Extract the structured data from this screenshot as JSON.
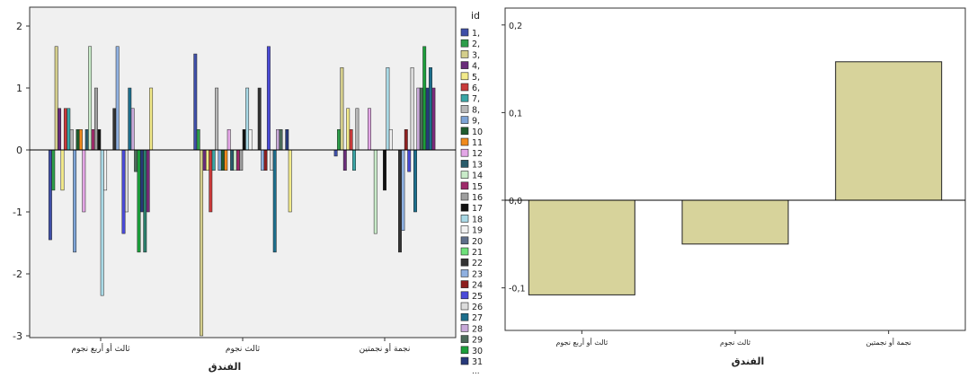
{
  "chart_data": [
    {
      "type": "bar",
      "xlabel": "الفندق",
      "ylabel": "",
      "ylim": [
        -3,
        2.2
      ],
      "yticks": [
        "-3",
        "-2",
        "-1",
        "0",
        "1",
        "2"
      ],
      "categories": [
        "ثالث أو أربع نجوم",
        "ثالث نجوم",
        "نجمة أو نجمتين"
      ],
      "legend_title": "id",
      "legend_labels": [
        "1,",
        "2,",
        "3,",
        "4,",
        "5,",
        "6,",
        "7,",
        "8,",
        "9,",
        "10",
        "11",
        "12",
        "13",
        "14",
        "15",
        "16",
        "17",
        "18",
        "19",
        "20",
        "21",
        "22",
        "23",
        "24",
        "25",
        "26",
        "27",
        "28",
        "29",
        "30",
        "31"
      ],
      "legend_more": "...",
      "series": [
        {
          "color": "#3F4FA8",
          "values": [
            -1.45,
            1.55,
            -0.1
          ]
        },
        {
          "color": "#2E9E4A",
          "values": [
            -0.65,
            0.33,
            0.33
          ]
        },
        {
          "color": "#D4CE8C",
          "values": [
            1.67,
            -3.0,
            1.33
          ]
        },
        {
          "color": "#6A2C7A",
          "values": [
            0.67,
            -0.33,
            -0.33
          ]
        },
        {
          "color": "#F2EA8A",
          "values": [
            -0.65,
            -0.33,
            0.67
          ]
        },
        {
          "color": "#C93A3A",
          "values": [
            0.67,
            -1.0,
            0.33
          ]
        },
        {
          "color": "#3AA6A6",
          "values": [
            0.67,
            -0.33,
            -0.33
          ]
        },
        {
          "color": "#B8B8B8",
          "values": [
            0.33,
            1.0,
            0.67
          ]
        },
        {
          "color": "#7EA4D6",
          "values": [
            -1.65,
            -0.33,
            0.0
          ]
        },
        {
          "color": "#1F5C2E",
          "values": [
            0.33,
            -0.33,
            0.0
          ]
        },
        {
          "color": "#F08A1C",
          "values": [
            0.33,
            -0.33,
            0.0
          ]
        },
        {
          "color": "#E3A6E6",
          "values": [
            -1.0,
            0.33,
            0.67
          ]
        },
        {
          "color": "#2A5C6B",
          "values": [
            0.33,
            -0.33,
            0.0
          ]
        },
        {
          "color": "#C9EBC9",
          "values": [
            1.67,
            -0.33,
            -1.35
          ]
        },
        {
          "color": "#9E2A6A",
          "values": [
            0.33,
            -0.33,
            0.0
          ]
        },
        {
          "color": "#9E9E9E",
          "values": [
            1.0,
            -0.33,
            0.0
          ]
        },
        {
          "color": "#111111",
          "values": [
            0.33,
            0.33,
            -0.65
          ]
        },
        {
          "color": "#A9D9E6",
          "values": [
            -2.35,
            1.0,
            1.33
          ]
        },
        {
          "color": "#F2F2F2",
          "values": [
            -0.65,
            0.33,
            0.33
          ]
        },
        {
          "color": "#5E6E8A",
          "values": [
            0.0,
            0.0,
            0.0
          ]
        },
        {
          "color": "#6EE07A",
          "values": [
            0.0,
            0.0,
            0.0
          ]
        },
        {
          "color": "#333333",
          "values": [
            0.67,
            1.0,
            -1.65
          ]
        },
        {
          "color": "#8FB0E0",
          "values": [
            1.67,
            -0.33,
            -1.3
          ]
        },
        {
          "color": "#8E1F1F",
          "values": [
            0.0,
            -0.33,
            0.33
          ]
        },
        {
          "color": "#4A4AD9",
          "values": [
            -1.35,
            1.67,
            -0.35
          ]
        },
        {
          "color": "#DCDCDC",
          "values": [
            -1.0,
            -0.33,
            1.33
          ]
        },
        {
          "color": "#1C6E8C",
          "values": [
            1.0,
            -1.65,
            -1.0
          ]
        },
        {
          "color": "#C9A9D9",
          "values": [
            0.67,
            0.33,
            1.0
          ]
        },
        {
          "color": "#4C6B5A",
          "values": [
            -0.35,
            0.33,
            1.0
          ]
        },
        {
          "color": "#1B9E3A",
          "values": [
            -1.65,
            0.0,
            1.67
          ]
        },
        {
          "color": "#27397A",
          "values": [
            -1.0,
            0.33,
            1.0
          ]
        }
      ],
      "extra_bars": [
        {
          "category": 0,
          "color": "#2A7E6B",
          "value": -1.65
        },
        {
          "category": 0,
          "color": "#7A2A7A",
          "value": -1.0
        },
        {
          "category": 0,
          "color": "#F2EA8A",
          "value": 1.0
        },
        {
          "category": 1,
          "color": "#F2EA8A",
          "value": -1.0
        },
        {
          "category": 2,
          "color": "#1C6E8C",
          "value": 1.33
        },
        {
          "category": 2,
          "color": "#7A2A7A",
          "value": 1.0
        }
      ]
    },
    {
      "type": "bar",
      "xlabel": "الفندق",
      "ylabel": "",
      "ylim": [
        -0.15,
        0.22
      ],
      "yticks": [
        "-0,1",
        "0,0",
        "0,1",
        "0,2"
      ],
      "ytick_values": [
        -0.1,
        0.0,
        0.1,
        0.2
      ],
      "categories": [
        "ثالث أو أربع نجوم",
        "ثالث نجوم",
        "نجمة أو نجمتين"
      ],
      "values": [
        -0.108,
        -0.05,
        0.158
      ],
      "bar_color": "#D7D39B"
    }
  ]
}
